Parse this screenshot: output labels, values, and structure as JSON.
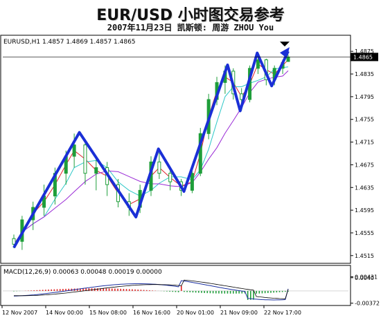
{
  "header": {
    "title": "EUR/USD 小时图交易参考",
    "subtitle": "2007年11月23日  凯斯顿: 周游 ZHOU You"
  },
  "main_panel": {
    "info": "EURUSD,H1  1.4857 1.4869 1.4857 1.4865",
    "price_tag": "1.4865"
  },
  "macd_panel": {
    "info": "MACD(12,26,9) 0.00063 0.00048 0.00019 0.00000"
  },
  "colors": {
    "zigzag": "#1a2fd6",
    "candles": "#1f9e3a",
    "ma_fast": "#e0202a",
    "ma_mid": "#2ec8c8",
    "ma_slow": "#9a2bd6",
    "macd_line": "#1a2fa0",
    "signal_line": "#000000",
    "hist_pos": "#e02020",
    "hist_neg": "#1f9e3a"
  },
  "chart_data": [
    {
      "type": "line",
      "title": "EURUSD,H1",
      "ylim": [
        1.4505,
        1.4885
      ],
      "y_ticks": [
        "1.4875",
        "1.4835",
        "1.4795",
        "1.4755",
        "1.4715",
        "1.4675",
        "1.4635",
        "1.4595",
        "1.4555",
        "1.4515"
      ],
      "x_ticks": [
        "12 Nov 2007",
        "14 Nov 00:00",
        "15 Nov 08:00",
        "16 Nov 16:00",
        "20 Nov 01:00",
        "21 Nov 09:00",
        "22 Nov 17:00"
      ],
      "last_price": 1.4865,
      "series": [
        {
          "name": "zigzag",
          "points": [
            [
              0.0,
              1.4529
            ],
            [
              0.239,
              1.4732
            ],
            [
              0.445,
              1.4583
            ],
            [
              0.527,
              1.4703
            ],
            [
              0.62,
              1.4628
            ],
            [
              0.779,
              1.4851
            ],
            [
              0.825,
              1.477
            ],
            [
              0.887,
              1.4872
            ],
            [
              0.94,
              1.4814
            ],
            [
              1.0,
              1.4875
            ]
          ]
        }
      ],
      "candles_approx": [
        [
          0.0,
          1.4545,
          1.4552,
          1.4528,
          1.4535
        ],
        [
          0.03,
          1.454,
          1.4585,
          1.4525,
          1.4578
        ],
        [
          0.07,
          1.4578,
          1.461,
          1.456,
          1.46
        ],
        [
          0.11,
          1.46,
          1.464,
          1.4585,
          1.462
        ],
        [
          0.15,
          1.462,
          1.467,
          1.4605,
          1.466
        ],
        [
          0.19,
          1.466,
          1.47,
          1.464,
          1.469
        ],
        [
          0.22,
          1.469,
          1.473,
          1.467,
          1.471
        ],
        [
          0.26,
          1.471,
          1.472,
          1.464,
          1.466
        ],
        [
          0.3,
          1.466,
          1.469,
          1.463,
          1.467
        ],
        [
          0.34,
          1.467,
          1.468,
          1.462,
          1.464
        ],
        [
          0.38,
          1.464,
          1.465,
          1.46,
          1.461
        ],
        [
          0.42,
          1.461,
          1.4625,
          1.4585,
          1.46
        ],
        [
          0.46,
          1.46,
          1.464,
          1.459,
          1.463
        ],
        [
          0.5,
          1.463,
          1.469,
          1.462,
          1.468
        ],
        [
          0.53,
          1.468,
          1.47,
          1.465,
          1.466
        ],
        [
          0.57,
          1.466,
          1.467,
          1.463,
          1.4645
        ],
        [
          0.61,
          1.4645,
          1.465,
          1.462,
          1.463
        ],
        [
          0.65,
          1.463,
          1.467,
          1.4625,
          1.466
        ],
        [
          0.68,
          1.466,
          1.474,
          1.4655,
          1.473
        ],
        [
          0.71,
          1.473,
          1.48,
          1.472,
          1.479
        ],
        [
          0.74,
          1.479,
          1.483,
          1.478,
          1.482
        ],
        [
          0.77,
          1.482,
          1.485,
          1.48,
          1.484
        ],
        [
          0.8,
          1.484,
          1.4845,
          1.479,
          1.48
        ],
        [
          0.83,
          1.48,
          1.481,
          1.477,
          1.479
        ],
        [
          0.86,
          1.479,
          1.485,
          1.4785,
          1.4845
        ],
        [
          0.89,
          1.4845,
          1.487,
          1.4835,
          1.486
        ],
        [
          0.92,
          1.486,
          1.4862,
          1.4815,
          1.4825
        ],
        [
          0.95,
          1.4825,
          1.485,
          1.4815,
          1.4845
        ],
        [
          0.98,
          1.4845,
          1.486,
          1.4835,
          1.4855
        ],
        [
          1.0,
          1.4857,
          1.4869,
          1.4857,
          1.4865
        ]
      ]
    },
    {
      "type": "line",
      "title": "MACD(12,26,9)",
      "ylim": [
        -0.004,
        0.0048
      ],
      "y_ticks": [
        "0.00431",
        "0.0040",
        "-0.00372"
      ],
      "values": {
        "macd": 0.00063,
        "signal": 0.00048,
        "histogram": 0.00019,
        "zero": 0.0
      }
    }
  ]
}
